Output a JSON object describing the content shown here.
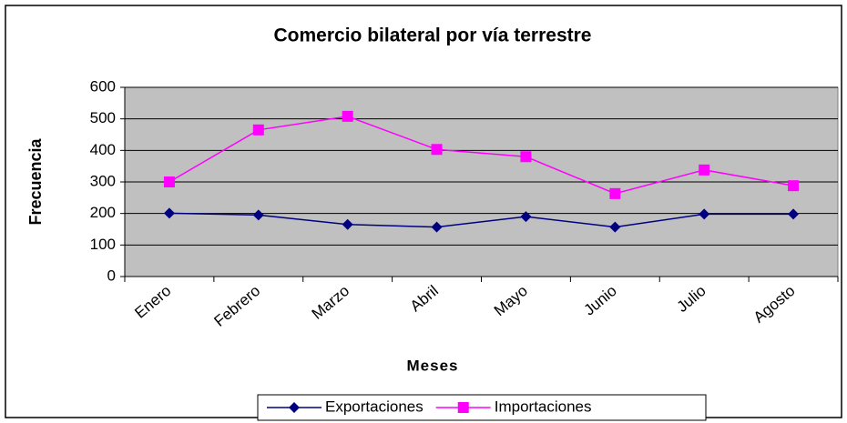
{
  "chart_data": {
    "type": "line",
    "title": "Comercio bilateral por vía terrestre",
    "x_label": "Meses",
    "y_label": "Frecuencia",
    "categories": [
      "Enero",
      "Febrero",
      "Marzo",
      "Abril",
      "Mayo",
      "Junio",
      "Julio",
      "Agosto"
    ],
    "series": [
      {
        "name": "Exportaciones",
        "color": "#000080",
        "marker": "diamond",
        "values": [
          201,
          195,
          165,
          157,
          190,
          157,
          198,
          198
        ]
      },
      {
        "name": "Importaciones",
        "color": "#ff00ff",
        "marker": "square",
        "values": [
          300,
          465,
          508,
          403,
          380,
          263,
          338,
          288
        ]
      }
    ],
    "ylim": [
      0,
      600
    ],
    "yticks": [
      0,
      100,
      200,
      300,
      400,
      500,
      600
    ],
    "grid": true,
    "legend": "bottom"
  }
}
